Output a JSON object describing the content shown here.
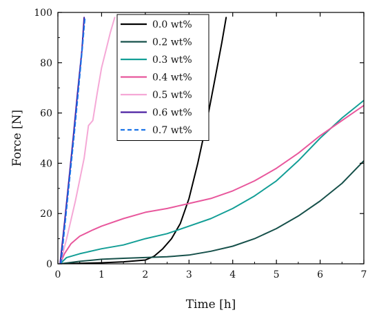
{
  "chart_data": {
    "type": "line",
    "title": "",
    "xlabel": "Time [h]",
    "ylabel": "Force [N]",
    "xlim": [
      0,
      7
    ],
    "ylim": [
      0,
      100
    ],
    "xticks": [
      0,
      1,
      2,
      3,
      4,
      5,
      6,
      7
    ],
    "yticks": [
      0,
      20,
      40,
      60,
      80,
      100
    ],
    "grid": false,
    "legend_position": "top-center",
    "series": [
      {
        "name": "0.0 wt%",
        "color": "#000000",
        "dash": "solid",
        "points": [
          [
            0.05,
            0
          ],
          [
            0.5,
            0.2
          ],
          [
            1.0,
            0.4
          ],
          [
            1.5,
            0.8
          ],
          [
            2.0,
            1.5
          ],
          [
            2.2,
            3
          ],
          [
            2.4,
            6
          ],
          [
            2.6,
            10
          ],
          [
            2.8,
            16
          ],
          [
            3.0,
            26
          ],
          [
            3.2,
            40
          ],
          [
            3.4,
            56
          ],
          [
            3.6,
            74
          ],
          [
            3.75,
            88
          ],
          [
            3.85,
            98
          ]
        ]
      },
      {
        "name": "0.2 wt%",
        "color": "#16504a",
        "dash": "solid",
        "points": [
          [
            0.05,
            0
          ],
          [
            0.5,
            1
          ],
          [
            1.0,
            1.8
          ],
          [
            1.5,
            2.2
          ],
          [
            2.0,
            2.5
          ],
          [
            2.5,
            2.8
          ],
          [
            3.0,
            3.5
          ],
          [
            3.5,
            5
          ],
          [
            4.0,
            7
          ],
          [
            4.5,
            10
          ],
          [
            5.0,
            14
          ],
          [
            5.5,
            19
          ],
          [
            6.0,
            25
          ],
          [
            6.5,
            32
          ],
          [
            7.0,
            41
          ]
        ]
      },
      {
        "name": "0.3 wt%",
        "color": "#139e96",
        "dash": "solid",
        "points": [
          [
            0.05,
            0
          ],
          [
            0.2,
            2.5
          ],
          [
            0.5,
            4
          ],
          [
            1.0,
            6
          ],
          [
            1.5,
            7.5
          ],
          [
            2.0,
            10
          ],
          [
            2.5,
            12
          ],
          [
            3.0,
            15
          ],
          [
            3.5,
            18
          ],
          [
            4.0,
            22
          ],
          [
            4.5,
            27
          ],
          [
            5.0,
            33
          ],
          [
            5.5,
            41
          ],
          [
            6.0,
            50
          ],
          [
            6.5,
            58
          ],
          [
            7.0,
            65
          ]
        ]
      },
      {
        "name": "0.4 wt%",
        "color": "#e8579c",
        "dash": "solid",
        "points": [
          [
            0.05,
            0
          ],
          [
            0.15,
            4
          ],
          [
            0.3,
            8
          ],
          [
            0.5,
            11
          ],
          [
            0.8,
            13.5
          ],
          [
            1.0,
            15
          ],
          [
            1.5,
            18
          ],
          [
            2.0,
            20.5
          ],
          [
            2.5,
            22
          ],
          [
            3.0,
            24
          ],
          [
            3.5,
            26
          ],
          [
            4.0,
            29
          ],
          [
            4.5,
            33
          ],
          [
            5.0,
            38
          ],
          [
            5.5,
            44
          ],
          [
            6.0,
            51
          ],
          [
            6.5,
            57
          ],
          [
            7.0,
            63
          ]
        ]
      },
      {
        "name": "0.5 wt%",
        "color": "#f5a8d6",
        "dash": "solid",
        "points": [
          [
            0.05,
            0
          ],
          [
            0.2,
            10
          ],
          [
            0.4,
            25
          ],
          [
            0.6,
            42
          ],
          [
            0.7,
            55
          ],
          [
            0.8,
            57
          ],
          [
            0.9,
            68
          ],
          [
            1.0,
            78
          ],
          [
            1.1,
            85
          ],
          [
            1.2,
            92
          ],
          [
            1.3,
            98
          ]
        ]
      },
      {
        "name": "0.6 wt%",
        "color": "#4a1fa0",
        "dash": "solid",
        "points": [
          [
            0.05,
            0
          ],
          [
            0.15,
            16
          ],
          [
            0.25,
            33
          ],
          [
            0.35,
            50
          ],
          [
            0.45,
            68
          ],
          [
            0.55,
            85
          ],
          [
            0.6,
            98
          ]
        ]
      },
      {
        "name": "0.7 wt%",
        "color": "#1a73e8",
        "dash": "dashed",
        "points": [
          [
            0.07,
            0
          ],
          [
            0.17,
            17
          ],
          [
            0.27,
            34
          ],
          [
            0.37,
            51
          ],
          [
            0.47,
            69
          ],
          [
            0.56,
            86
          ],
          [
            0.62,
            98
          ]
        ]
      }
    ]
  }
}
